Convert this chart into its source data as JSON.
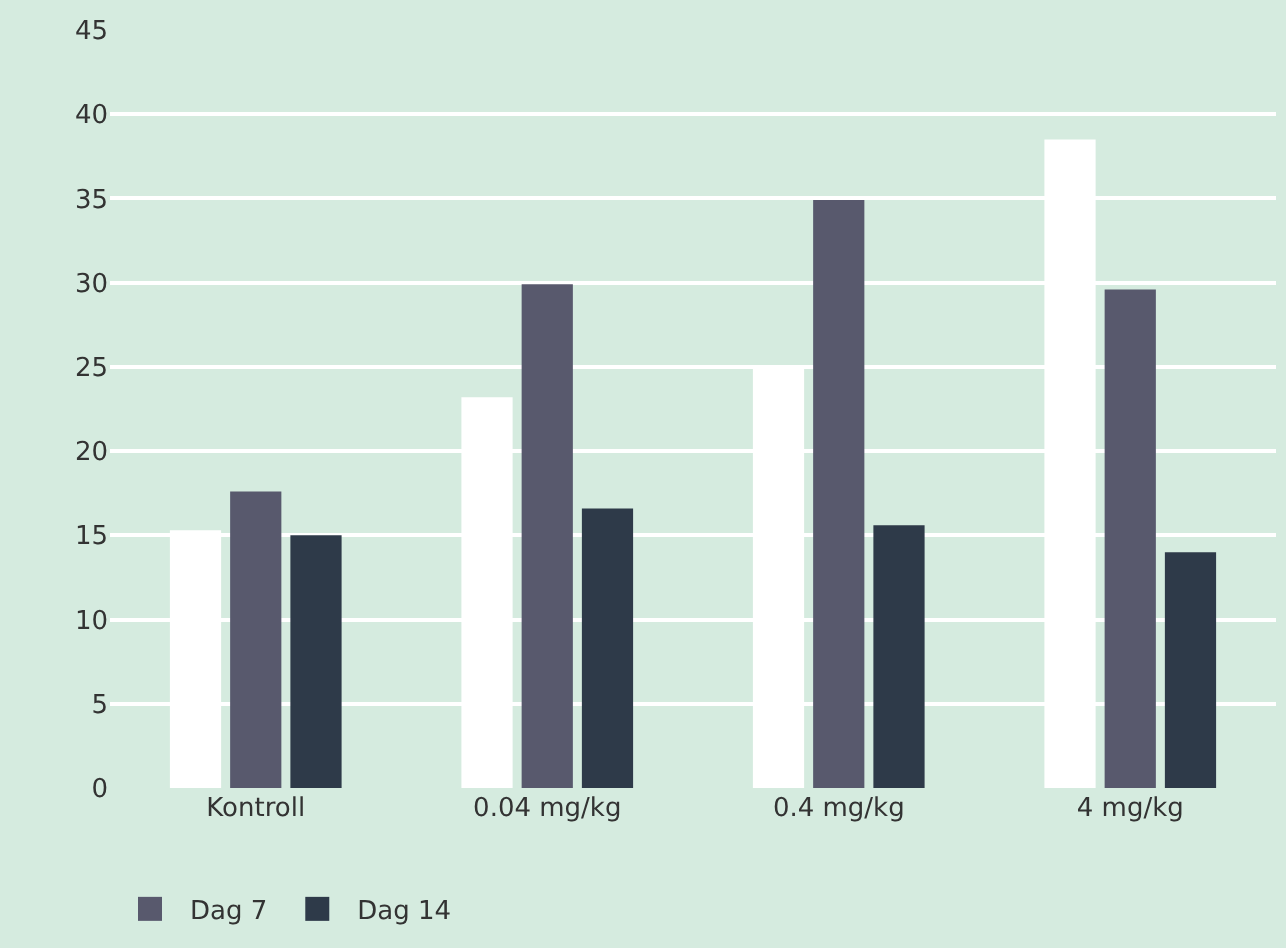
{
  "chart_data": {
    "type": "bar",
    "categories": [
      "Kontroll",
      "0.04 mg/kg",
      "0.4 mg/kg",
      "4 mg/kg"
    ],
    "series": [
      {
        "color": "#ffffff",
        "values": [
          15.3,
          23.2,
          24.9,
          38.5
        ]
      },
      {
        "name": "Dag 7",
        "color": "#58596d",
        "values": [
          17.6,
          29.9,
          34.9,
          29.6
        ]
      },
      {
        "name": "Dag 14",
        "color": "#2e3a49",
        "values": [
          15.0,
          16.6,
          15.6,
          14.0
        ]
      }
    ],
    "ylim": [
      0,
      45
    ],
    "yticks": [
      0,
      5,
      10,
      15,
      20,
      25,
      30,
      35,
      40,
      45
    ],
    "grid": "y",
    "legend": "bottom"
  }
}
